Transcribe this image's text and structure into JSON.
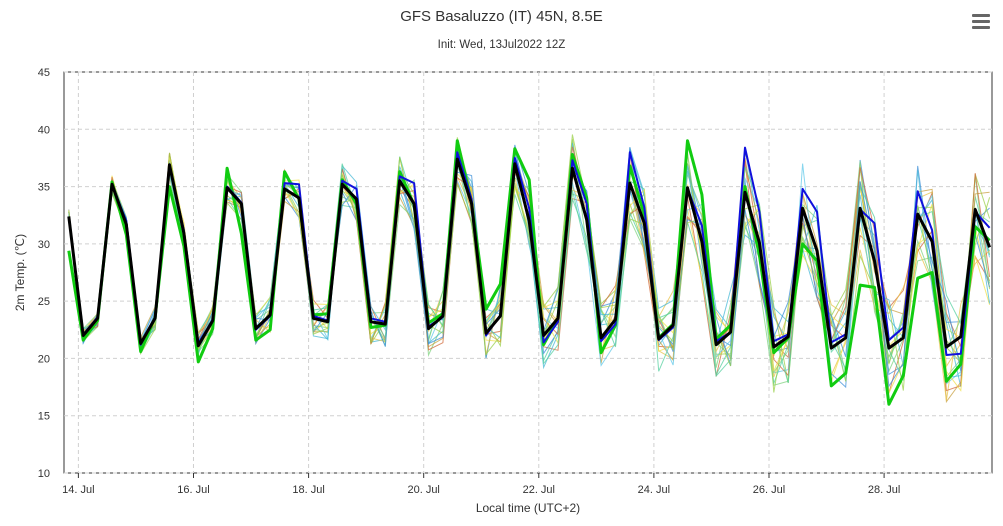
{
  "chart_data": {
    "type": "line",
    "title": "GFS Basaluzzo (IT) 45N, 8.5E",
    "subtitle": "Init: Wed, 13Jul2022 12Z",
    "xlabel": "Local time (UTC+2)",
    "ylabel": "2m Temp. (℃)",
    "ylim": [
      10,
      45
    ],
    "yticks": [
      10,
      15,
      20,
      25,
      30,
      35,
      40,
      45
    ],
    "xlim": [
      "2022-07-13 18:00",
      "2022-07-29 21:00"
    ],
    "xtick_labels": [
      "14. Jul",
      "16. Jul",
      "18. Jul",
      "20. Jul",
      "22. Jul",
      "24. Jul",
      "26. Jul",
      "28. Jul"
    ],
    "grid": true,
    "series_x": [
      "2022-07-13 20:00",
      "2022-07-14 02:00",
      "2022-07-14 08:00",
      "2022-07-14 14:00",
      "2022-07-14 20:00",
      "2022-07-15 02:00",
      "2022-07-15 08:00",
      "2022-07-15 14:00",
      "2022-07-15 20:00",
      "2022-07-16 02:00",
      "2022-07-16 08:00",
      "2022-07-16 14:00",
      "2022-07-16 20:00",
      "2022-07-17 02:00",
      "2022-07-17 08:00",
      "2022-07-17 14:00",
      "2022-07-17 20:00",
      "2022-07-18 02:00",
      "2022-07-18 08:00",
      "2022-07-18 14:00",
      "2022-07-18 20:00",
      "2022-07-19 02:00",
      "2022-07-19 08:00",
      "2022-07-19 14:00",
      "2022-07-19 20:00",
      "2022-07-20 02:00",
      "2022-07-20 08:00",
      "2022-07-20 14:00",
      "2022-07-20 20:00",
      "2022-07-21 02:00",
      "2022-07-21 08:00",
      "2022-07-21 14:00",
      "2022-07-21 20:00",
      "2022-07-22 02:00",
      "2022-07-22 08:00",
      "2022-07-22 14:00",
      "2022-07-22 20:00",
      "2022-07-23 02:00",
      "2022-07-23 08:00",
      "2022-07-23 14:00",
      "2022-07-23 20:00",
      "2022-07-24 02:00",
      "2022-07-24 08:00",
      "2022-07-24 14:00",
      "2022-07-24 20:00",
      "2022-07-25 02:00",
      "2022-07-25 08:00",
      "2022-07-25 14:00",
      "2022-07-25 20:00",
      "2022-07-26 02:00",
      "2022-07-26 08:00",
      "2022-07-26 14:00",
      "2022-07-26 20:00",
      "2022-07-27 02:00",
      "2022-07-27 08:00",
      "2022-07-27 14:00",
      "2022-07-27 20:00",
      "2022-07-28 02:00",
      "2022-07-28 08:00",
      "2022-07-28 14:00",
      "2022-07-28 20:00",
      "2022-07-29 02:00",
      "2022-07-29 08:00",
      "2022-07-29 14:00",
      "2022-07-29 20:00"
    ],
    "series": [
      {
        "color": "#000000",
        "role": "mean",
        "values": [
          32.4,
          22.0,
          23.5,
          35.2,
          31.7,
          21.3,
          23.5,
          36.9,
          30.9,
          21.1,
          23.3,
          34.9,
          33.5,
          22.6,
          23.8,
          34.8,
          34.0,
          23.5,
          23.2,
          35.2,
          33.9,
          23.2,
          23.0,
          35.5,
          33.5,
          22.6,
          23.7,
          37.4,
          33.5,
          22.2,
          23.7,
          37.0,
          32.0,
          22.0,
          23.5,
          36.6,
          32.1,
          21.8,
          23.4,
          35.3,
          31.8,
          21.7,
          22.9,
          34.9,
          30.2,
          21.2,
          22.3,
          34.5,
          30.1,
          21.0,
          21.9,
          33.1,
          29.4,
          20.9,
          21.8,
          33.1,
          28.5,
          20.9,
          21.8,
          32.6,
          30.2,
          21.0,
          21.9,
          33.0,
          29.7
        ]
      },
      {
        "color": "#1010dd",
        "role": "control",
        "values": [
          32.3,
          22.1,
          23.6,
          35.1,
          32.0,
          21.2,
          23.6,
          36.8,
          31.2,
          21.3,
          23.4,
          35.0,
          33.6,
          22.5,
          23.7,
          35.3,
          35.2,
          23.7,
          23.3,
          35.5,
          34.8,
          23.5,
          23.2,
          35.9,
          35.3,
          22.8,
          23.6,
          38.0,
          33.9,
          22.0,
          23.8,
          37.5,
          33.1,
          21.4,
          23.2,
          37.3,
          33.5,
          21.5,
          23.0,
          38.0,
          33.2,
          21.6,
          22.7,
          34.8,
          31.6,
          21.5,
          22.3,
          38.4,
          32.8,
          21.5,
          22.1,
          34.8,
          32.8,
          21.4,
          22.1,
          33.0,
          31.8,
          21.6,
          22.7,
          34.6,
          31.2,
          20.3,
          20.4,
          32.8,
          31.4
        ]
      },
      {
        "color": "#11cc11",
        "role": "operational",
        "values": [
          29.4,
          21.6,
          23.3,
          35.4,
          30.8,
          20.6,
          23.6,
          35.0,
          29.8,
          19.7,
          22.6,
          36.6,
          30.9,
          21.6,
          22.5,
          36.3,
          33.9,
          23.8,
          23.9,
          35.6,
          33.5,
          22.7,
          22.9,
          36.3,
          33.4,
          23.1,
          23.9,
          39.0,
          33.6,
          24.3,
          26.5,
          38.3,
          35.6,
          21.2,
          23.5,
          37.8,
          34.0,
          20.5,
          22.9,
          36.8,
          32.5,
          21.8,
          23.0,
          39.0,
          34.3,
          21.7,
          22.9,
          35.0,
          29.0,
          20.5,
          21.8,
          30.0,
          28.5,
          17.6,
          18.7,
          26.4,
          26.2,
          16.0,
          18.5,
          27.0,
          27.5,
          18.0,
          19.5,
          31.5,
          30.3
        ]
      }
    ]
  }
}
